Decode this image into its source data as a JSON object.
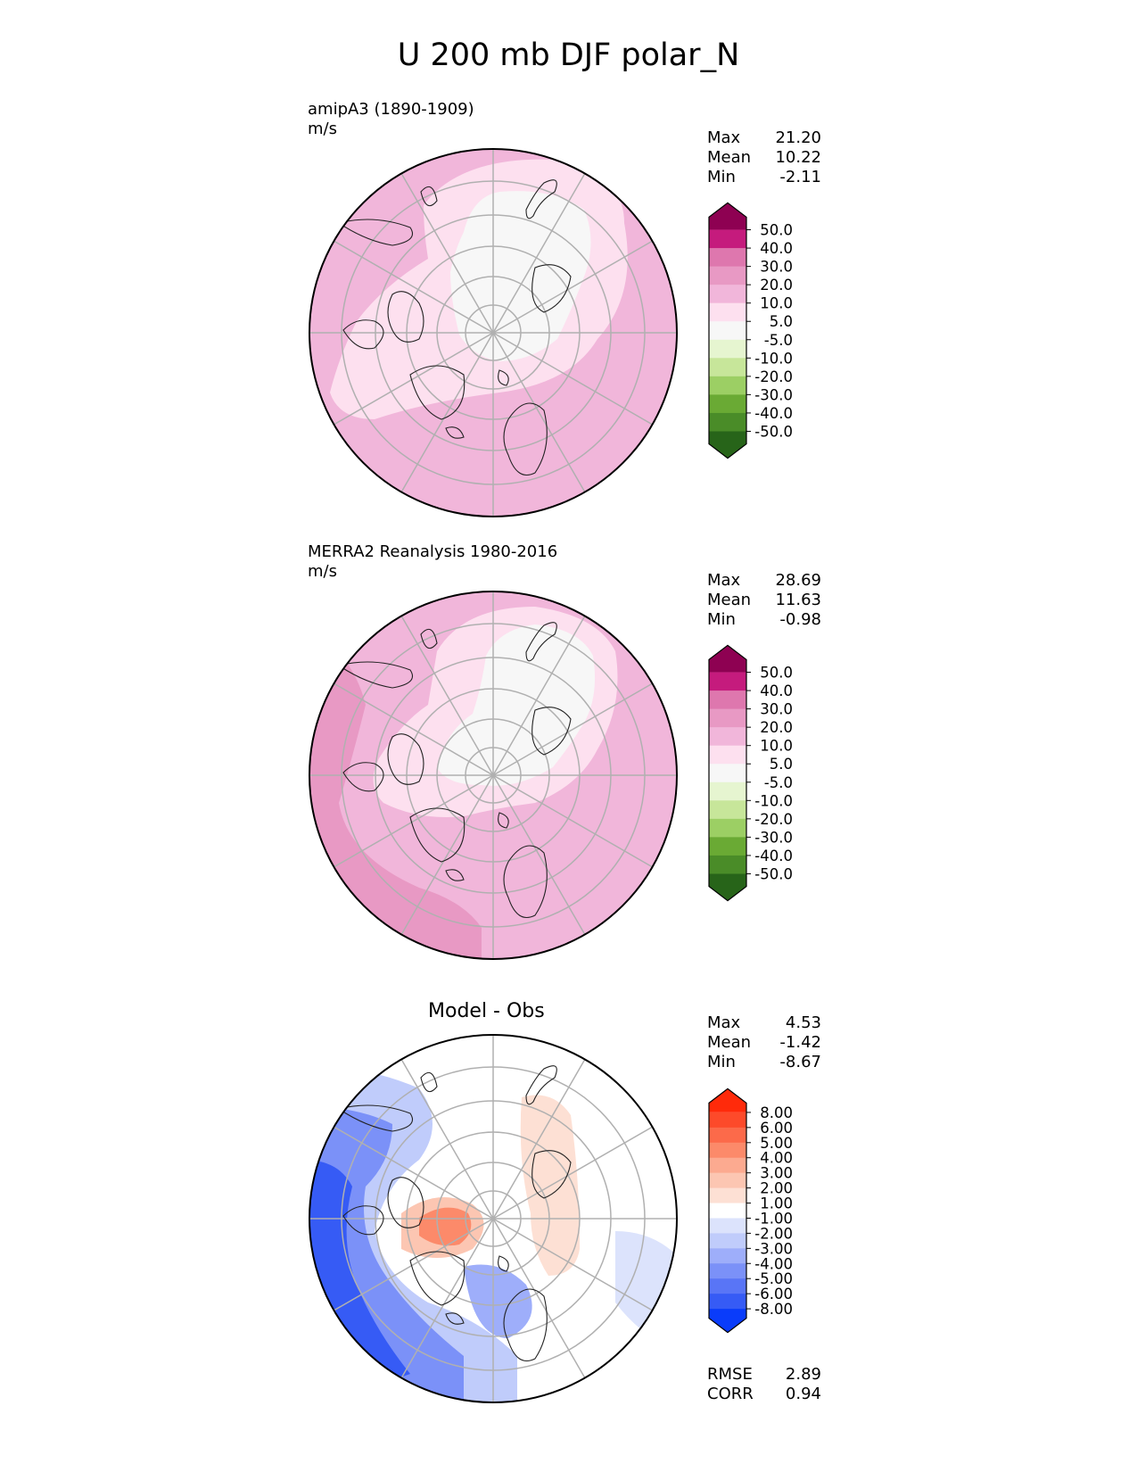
{
  "title": "U 200 mb DJF polar_N",
  "panels": [
    {
      "label_line1": "amipA3 (1890-1909)",
      "label_line2": "m/s",
      "stats": [
        {
          "label": "Max",
          "value": "21.20"
        },
        {
          "label": "Mean",
          "value": "10.22"
        },
        {
          "label": "Min",
          "value": "-2.11"
        }
      ]
    },
    {
      "label_line1": "MERRA2 Reanalysis 1980-2016",
      "label_line2": "m/s",
      "stats": [
        {
          "label": "Max",
          "value": "28.69"
        },
        {
          "label": "Mean",
          "value": "11.63"
        },
        {
          "label": "Min",
          "value": "-0.98"
        }
      ]
    },
    {
      "title": "Model - Obs",
      "stats": [
        {
          "label": "Max",
          "value": "4.53"
        },
        {
          "label": "Mean",
          "value": "-1.42"
        },
        {
          "label": "Min",
          "value": "-8.67"
        }
      ],
      "metrics": [
        {
          "label": "RMSE",
          "value": "2.89"
        },
        {
          "label": "CORR",
          "value": "0.94"
        }
      ]
    }
  ],
  "colorbars": {
    "field": {
      "ticks": [
        "50.0",
        "40.0",
        "30.0",
        "20.0",
        "10.0",
        "5.0",
        "-5.0",
        "-10.0",
        "-20.0",
        "-30.0",
        "-40.0",
        "-50.0"
      ],
      "colors": [
        "#8e0152",
        "#c51b7d",
        "#de77ae",
        "#e899c4",
        "#f1b6da",
        "#fde0ef",
        "#f7f7f7",
        "#e6f5d0",
        "#c7e69a",
        "#9ccf64",
        "#6aaa34",
        "#4a8c28",
        "#276419"
      ]
    },
    "diff": {
      "ticks": [
        "8.00",
        "6.00",
        "5.00",
        "4.00",
        "3.00",
        "2.00",
        "1.00",
        "-1.00",
        "-2.00",
        "-3.00",
        "-4.00",
        "-5.00",
        "-6.00",
        "-8.00"
      ],
      "colors": [
        "#ff2a0a",
        "#fd4a2a",
        "#fc6a4a",
        "#fc8a6a",
        "#fcaa90",
        "#fcc6b2",
        "#fde0d4",
        "#ffffff",
        "#dce3fc",
        "#c0ccfb",
        "#9eaefa",
        "#7b91f8",
        "#5975f6",
        "#365bf5",
        "#0a3cfa"
      ]
    }
  }
}
